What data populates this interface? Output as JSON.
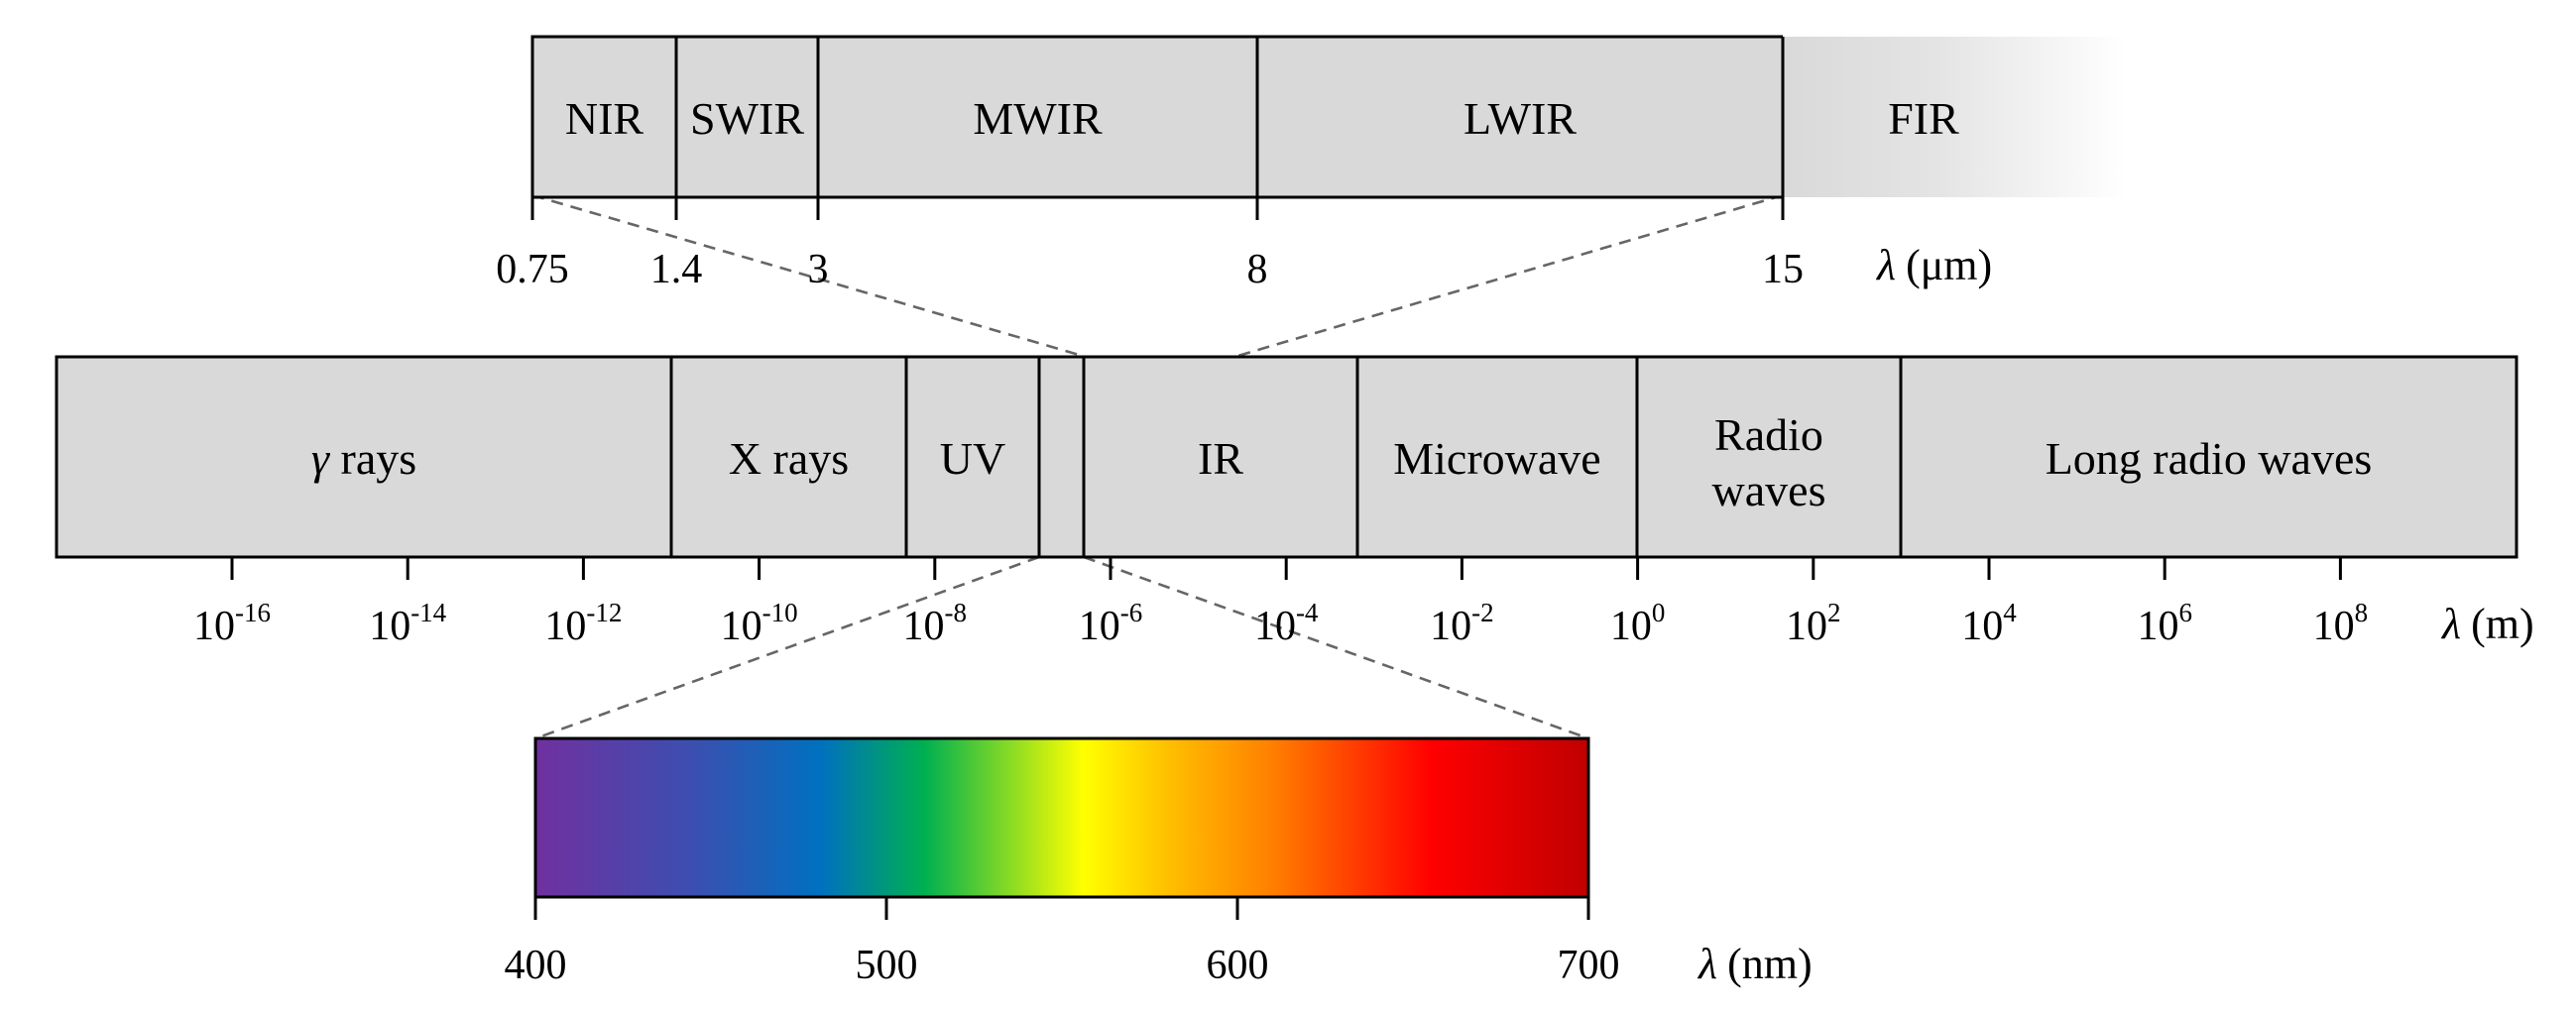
{
  "ir_detail": {
    "bands": [
      {
        "label": "NIR",
        "from": 0.75,
        "to": 1.4
      },
      {
        "label": "SWIR",
        "from": 1.4,
        "to": 3
      },
      {
        "label": "MWIR",
        "from": 3,
        "to": 8
      },
      {
        "label": "LWIR",
        "from": 8,
        "to": 15
      },
      {
        "label": "FIR",
        "from": 15,
        "to": null
      }
    ],
    "ticks": [
      "0.75",
      "1.4",
      "3",
      "8",
      "15"
    ],
    "unit_symbol": "λ",
    "unit": "(μm)"
  },
  "spectrum": {
    "bands": [
      {
        "label": "γ rays",
        "lines": [
          "γ rays"
        ]
      },
      {
        "label": "X rays",
        "lines": [
          "X rays"
        ]
      },
      {
        "label": "UV",
        "lines": [
          "UV"
        ]
      },
      {
        "label": "",
        "lines": []
      },
      {
        "label": "IR",
        "lines": [
          "IR"
        ]
      },
      {
        "label": "Microwave",
        "lines": [
          "Microwave"
        ]
      },
      {
        "label": "Radio waves",
        "lines": [
          "Radio",
          "waves"
        ]
      },
      {
        "label": "Long radio waves",
        "lines": [
          "Long radio waves"
        ]
      }
    ],
    "ticks": [
      {
        "base": "10",
        "exp": "-16"
      },
      {
        "base": "10",
        "exp": "-14"
      },
      {
        "base": "10",
        "exp": "-12"
      },
      {
        "base": "10",
        "exp": "-10"
      },
      {
        "base": "10",
        "exp": "-8"
      },
      {
        "base": "10",
        "exp": "-6"
      },
      {
        "base": "10",
        "exp": "-4"
      },
      {
        "base": "10",
        "exp": "-2"
      },
      {
        "base": "10",
        "exp": "0"
      },
      {
        "base": "10",
        "exp": "2"
      },
      {
        "base": "10",
        "exp": "4"
      },
      {
        "base": "10",
        "exp": "6"
      },
      {
        "base": "10",
        "exp": "8"
      }
    ],
    "unit_symbol": "λ",
    "unit": "(m)"
  },
  "visible": {
    "range": [
      400,
      700
    ],
    "ticks": [
      "400",
      "500",
      "600",
      "700"
    ],
    "unit_symbol": "λ",
    "unit": "(nm)",
    "colors": [
      "#7030a0",
      "#3b4fb0",
      "#0070c0",
      "#00b050",
      "#ffff00",
      "#ffc000",
      "#ff7f00",
      "#ff0000",
      "#c00000"
    ]
  }
}
